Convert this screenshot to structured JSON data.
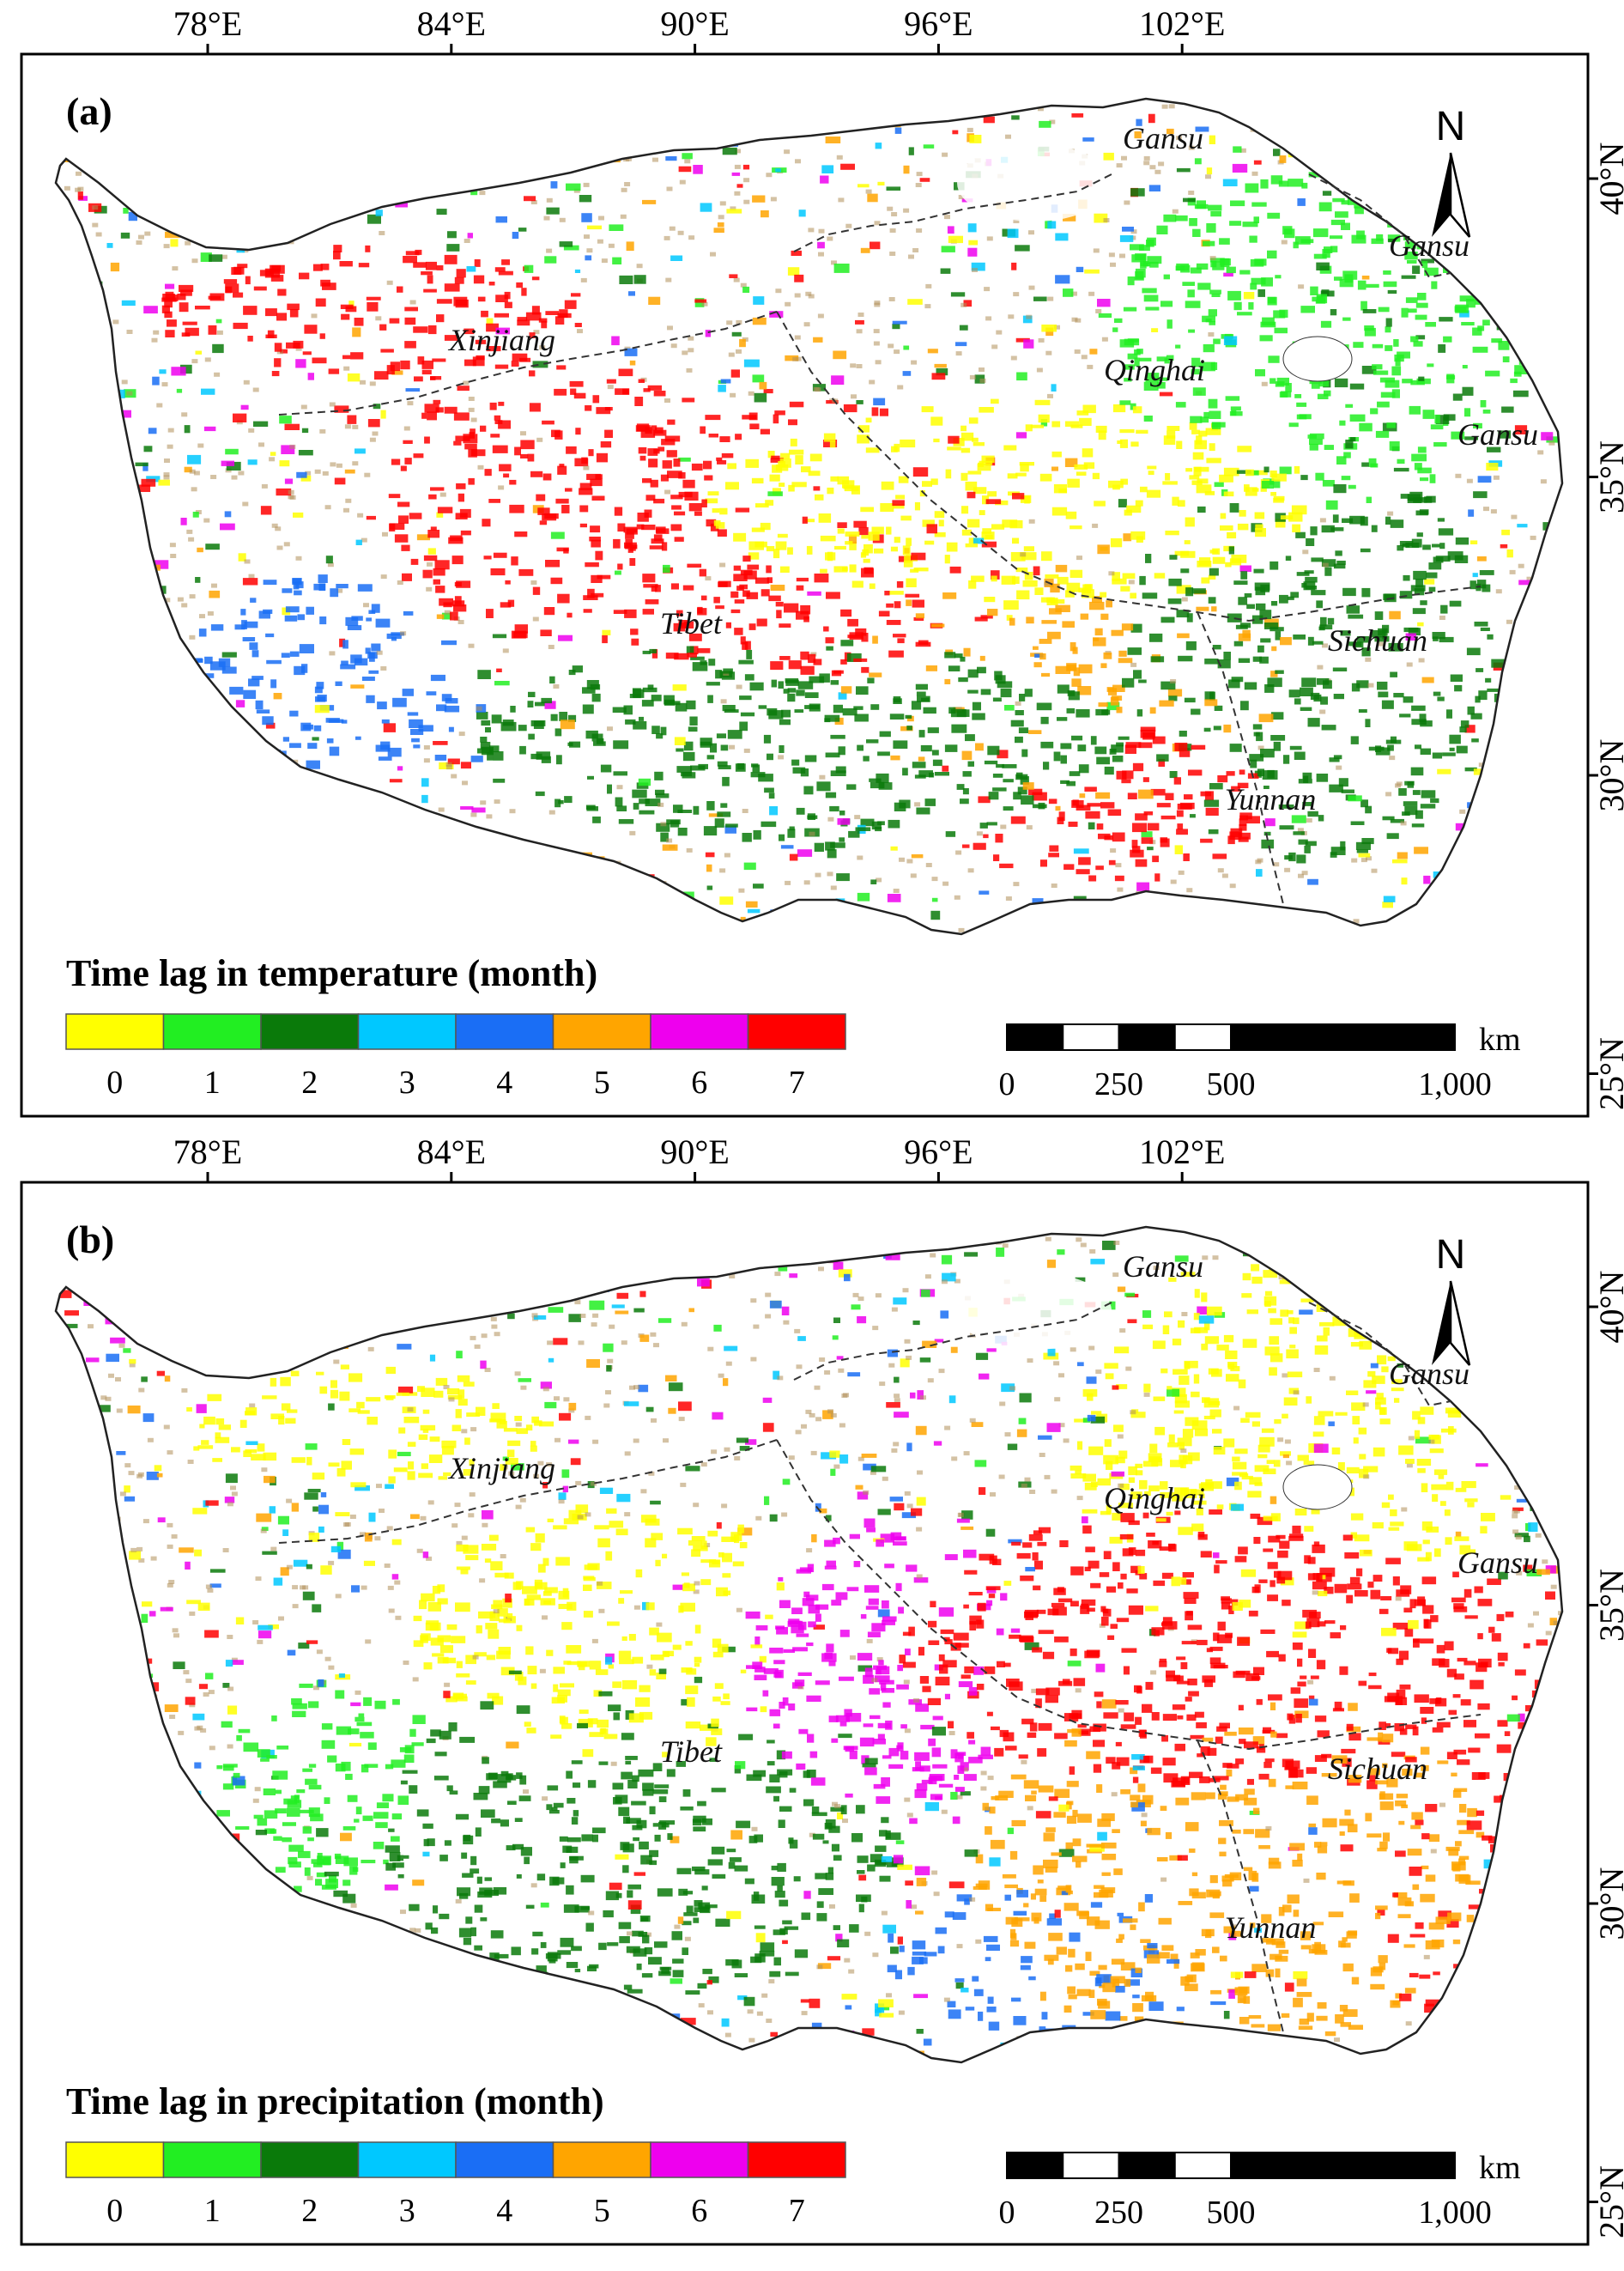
{
  "lon_ticks": [
    {
      "deg": 78,
      "label": "78°E"
    },
    {
      "deg": 84,
      "label": "84°E"
    },
    {
      "deg": 90,
      "label": "90°E"
    },
    {
      "deg": 96,
      "label": "96°E"
    },
    {
      "deg": 102,
      "label": "102°E"
    }
  ],
  "lat_ticks": [
    {
      "deg": 40,
      "label": "40°N"
    },
    {
      "deg": 35,
      "label": "35°N"
    },
    {
      "deg": 30,
      "label": "30°N"
    },
    {
      "deg": 25,
      "label": "25°N"
    }
  ],
  "north_label": "N",
  "scale": {
    "unit": "km",
    "labels": [
      "0",
      "250",
      "500",
      "1,000"
    ]
  },
  "legend_classes": [
    {
      "value": "0",
      "color": "#ffff00"
    },
    {
      "value": "1",
      "color": "#22ee22"
    },
    {
      "value": "2",
      "color": "#0a7a0a"
    },
    {
      "value": "3",
      "color": "#00c8ff"
    },
    {
      "value": "4",
      "color": "#1a6ef5"
    },
    {
      "value": "5",
      "color": "#ffa500"
    },
    {
      "value": "6",
      "color": "#ee00ee"
    },
    {
      "value": "7",
      "color": "#ff0000"
    }
  ],
  "regions": [
    {
      "name": "Gansu"
    },
    {
      "name": "Gansu"
    },
    {
      "name": "Gansu"
    },
    {
      "name": "Xinjiang"
    },
    {
      "name": "Qinghai"
    },
    {
      "name": "Tibet"
    },
    {
      "name": "Sichuan"
    },
    {
      "name": "Yunnan"
    }
  ],
  "panels": [
    {
      "label": "(a)",
      "legend_title": "Time lag in temperature (month)"
    },
    {
      "label": "(b)",
      "legend_title": "Time lag in precipitation (month)"
    }
  ]
}
